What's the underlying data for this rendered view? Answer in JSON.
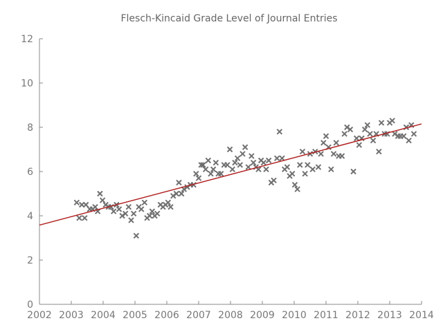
{
  "chart_data": {
    "type": "scatter",
    "title": "Flesch-Kincaid Grade Level of Journal Entries",
    "xlabel": "",
    "ylabel": "",
    "xlim": [
      2002,
      2014
    ],
    "ylim": [
      0,
      12
    ],
    "x_ticks": [
      "2002",
      "2003",
      "2004",
      "2005",
      "2006",
      "2007",
      "2008",
      "2009",
      "2010",
      "2011",
      "2012",
      "2013",
      "2014"
    ],
    "y_ticks": [
      "0",
      "2",
      "4",
      "6",
      "8",
      "10",
      "12"
    ],
    "grid": false,
    "legend": "none",
    "colors": {
      "points": "#707070",
      "trend": "#b22222",
      "axis": "#888888",
      "text": "#777777"
    },
    "series": [
      {
        "marker": "x",
        "points": [
          [
            2003.17,
            4.6
          ],
          [
            2003.25,
            3.9
          ],
          [
            2003.33,
            4.5
          ],
          [
            2003.42,
            3.9
          ],
          [
            2003.46,
            4.5
          ],
          [
            2003.58,
            4.3
          ],
          [
            2003.67,
            4.3
          ],
          [
            2003.75,
            4.4
          ],
          [
            2003.83,
            4.2
          ],
          [
            2003.9,
            5.0
          ],
          [
            2003.98,
            4.7
          ],
          [
            2004.08,
            4.5
          ],
          [
            2004.17,
            4.4
          ],
          [
            2004.25,
            4.4
          ],
          [
            2004.33,
            4.2
          ],
          [
            2004.42,
            4.5
          ],
          [
            2004.5,
            4.3
          ],
          [
            2004.6,
            4.0
          ],
          [
            2004.7,
            4.1
          ],
          [
            2004.8,
            4.4
          ],
          [
            2004.88,
            3.8
          ],
          [
            2004.96,
            4.1
          ],
          [
            2005.04,
            3.1
          ],
          [
            2005.12,
            4.4
          ],
          [
            2005.2,
            4.3
          ],
          [
            2005.3,
            4.6
          ],
          [
            2005.38,
            3.9
          ],
          [
            2005.46,
            4.0
          ],
          [
            2005.54,
            4.2
          ],
          [
            2005.62,
            4.0
          ],
          [
            2005.7,
            4.1
          ],
          [
            2005.8,
            4.5
          ],
          [
            2005.88,
            4.4
          ],
          [
            2005.96,
            4.5
          ],
          [
            2006.04,
            4.6
          ],
          [
            2006.12,
            4.4
          ],
          [
            2006.2,
            4.9
          ],
          [
            2006.3,
            5.0
          ],
          [
            2006.38,
            5.5
          ],
          [
            2006.46,
            5.0
          ],
          [
            2006.54,
            5.2
          ],
          [
            2006.64,
            5.3
          ],
          [
            2006.74,
            5.4
          ],
          [
            2006.84,
            5.4
          ],
          [
            2006.92,
            5.9
          ],
          [
            2007.0,
            5.7
          ],
          [
            2007.08,
            6.3
          ],
          [
            2007.14,
            6.3
          ],
          [
            2007.22,
            6.1
          ],
          [
            2007.3,
            6.5
          ],
          [
            2007.38,
            5.9
          ],
          [
            2007.46,
            6.1
          ],
          [
            2007.54,
            6.4
          ],
          [
            2007.62,
            5.9
          ],
          [
            2007.7,
            5.9
          ],
          [
            2007.8,
            6.3
          ],
          [
            2007.9,
            6.3
          ],
          [
            2007.98,
            7.0
          ],
          [
            2008.06,
            6.1
          ],
          [
            2008.14,
            6.4
          ],
          [
            2008.22,
            6.6
          ],
          [
            2008.3,
            6.3
          ],
          [
            2008.38,
            6.8
          ],
          [
            2008.46,
            7.1
          ],
          [
            2008.56,
            6.2
          ],
          [
            2008.66,
            6.7
          ],
          [
            2008.72,
            6.4
          ],
          [
            2008.8,
            6.2
          ],
          [
            2008.88,
            6.1
          ],
          [
            2008.96,
            6.5
          ],
          [
            2009.04,
            6.4
          ],
          [
            2009.12,
            6.1
          ],
          [
            2009.2,
            6.5
          ],
          [
            2009.28,
            5.5
          ],
          [
            2009.36,
            5.6
          ],
          [
            2009.46,
            6.6
          ],
          [
            2009.54,
            7.8
          ],
          [
            2009.62,
            6.6
          ],
          [
            2009.7,
            6.1
          ],
          [
            2009.78,
            6.2
          ],
          [
            2009.86,
            5.8
          ],
          [
            2009.94,
            5.9
          ],
          [
            2010.02,
            5.4
          ],
          [
            2010.1,
            5.2
          ],
          [
            2010.18,
            6.3
          ],
          [
            2010.26,
            6.9
          ],
          [
            2010.34,
            5.9
          ],
          [
            2010.42,
            6.3
          ],
          [
            2010.5,
            6.8
          ],
          [
            2010.58,
            6.1
          ],
          [
            2010.66,
            6.9
          ],
          [
            2010.76,
            6.2
          ],
          [
            2010.84,
            6.8
          ],
          [
            2010.92,
            7.3
          ],
          [
            2011.0,
            7.6
          ],
          [
            2011.08,
            7.1
          ],
          [
            2011.16,
            6.1
          ],
          [
            2011.24,
            6.8
          ],
          [
            2011.32,
            7.3
          ],
          [
            2011.4,
            6.7
          ],
          [
            2011.5,
            6.7
          ],
          [
            2011.58,
            7.7
          ],
          [
            2011.66,
            8.0
          ],
          [
            2011.76,
            7.9
          ],
          [
            2011.86,
            6.0
          ],
          [
            2011.96,
            7.5
          ],
          [
            2012.04,
            7.2
          ],
          [
            2012.12,
            7.5
          ],
          [
            2012.22,
            7.9
          ],
          [
            2012.3,
            8.1
          ],
          [
            2012.38,
            7.7
          ],
          [
            2012.48,
            7.4
          ],
          [
            2012.58,
            7.7
          ],
          [
            2012.66,
            6.9
          ],
          [
            2012.74,
            8.2
          ],
          [
            2012.84,
            7.7
          ],
          [
            2012.92,
            7.7
          ],
          [
            2013.0,
            8.2
          ],
          [
            2013.08,
            8.3
          ],
          [
            2013.16,
            7.7
          ],
          [
            2013.26,
            7.6
          ],
          [
            2013.34,
            7.6
          ],
          [
            2013.44,
            7.6
          ],
          [
            2013.52,
            8.0
          ],
          [
            2013.6,
            7.4
          ],
          [
            2013.68,
            8.1
          ],
          [
            2013.76,
            7.7
          ]
        ]
      }
    ],
    "trend_line": {
      "x": [
        2002,
        2014
      ],
      "y": [
        3.58,
        8.15
      ]
    }
  }
}
